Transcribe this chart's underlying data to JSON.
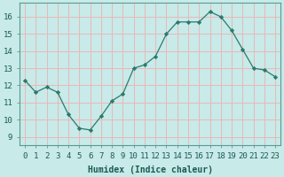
{
  "x": [
    0,
    1,
    2,
    3,
    4,
    5,
    6,
    7,
    8,
    9,
    10,
    11,
    12,
    13,
    14,
    15,
    16,
    17,
    18,
    19,
    20,
    21,
    22,
    23
  ],
  "y": [
    12.3,
    11.6,
    11.9,
    11.6,
    10.3,
    9.5,
    9.4,
    10.2,
    11.1,
    11.5,
    13.0,
    13.2,
    13.7,
    15.0,
    15.7,
    15.7,
    15.7,
    16.3,
    16.0,
    15.2,
    14.1,
    13.0,
    12.9,
    12.5
  ],
  "line_color": "#2a7a6e",
  "marker": "D",
  "marker_size": 2.2,
  "bg_color": "#c8eae8",
  "plot_bg_color": "#c8eae8",
  "grid_color": "#e8b8b8",
  "xlabel": "Humidex (Indice chaleur)",
  "ylim": [
    8.5,
    16.8
  ],
  "xlim": [
    -0.5,
    23.5
  ],
  "yticks": [
    9,
    10,
    11,
    12,
    13,
    14,
    15,
    16
  ],
  "xtick_labels": [
    "0",
    "1",
    "2",
    "3",
    "4",
    "5",
    "6",
    "7",
    "8",
    "9",
    "10",
    "11",
    "12",
    "13",
    "14",
    "15",
    "16",
    "17",
    "18",
    "19",
    "20",
    "21",
    "22",
    "23"
  ],
  "label_fontsize": 7.0,
  "tick_fontsize": 6.5
}
